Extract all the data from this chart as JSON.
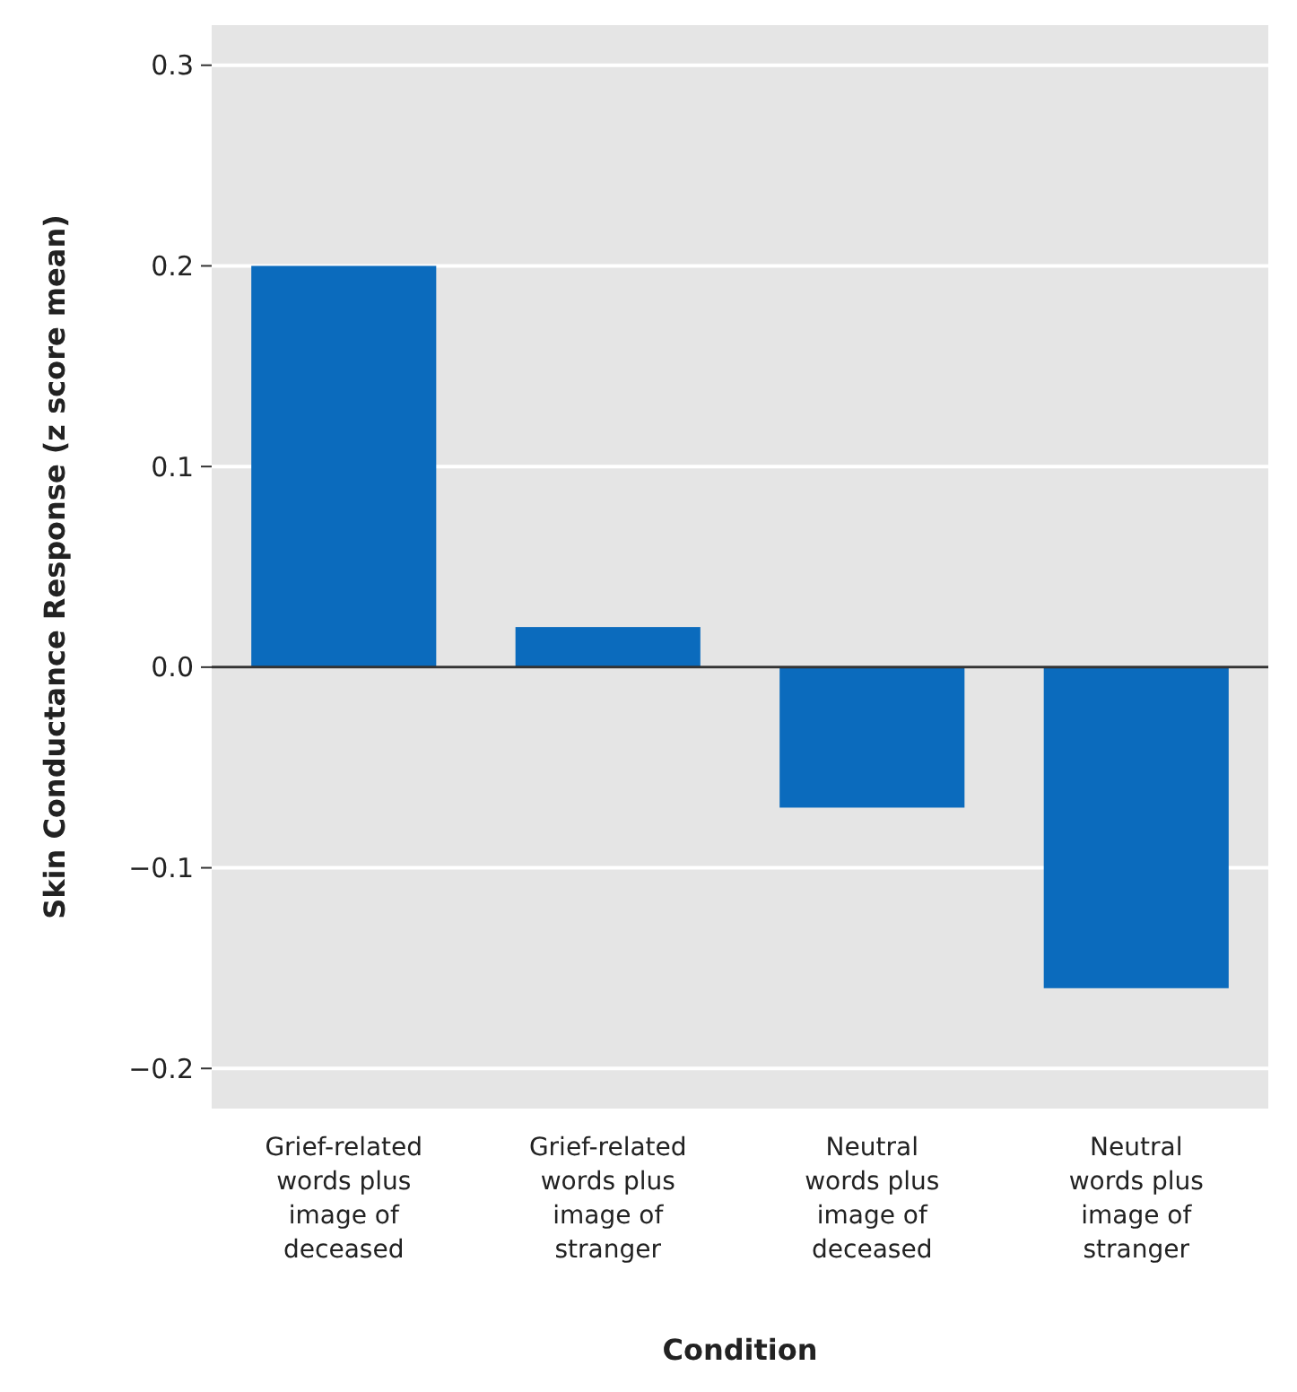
{
  "chart_data": {
    "type": "bar",
    "xlabel": "Condition",
    "ylabel": "Skin Conductance Response (z score mean)",
    "categories": [
      "Grief-related\nwords plus\nimage of\ndeceased",
      "Grief-related\nwords plus\nimage of\nstranger",
      "Neutral\nwords plus\nimage of\ndeceased",
      "Neutral\nwords plus\nimage of\nstranger"
    ],
    "values": [
      0.2,
      0.02,
      -0.07,
      -0.16
    ],
    "color": "#0b6bbd",
    "ylim": [
      -0.22,
      0.32
    ],
    "yticks": [
      {
        "value": -0.2,
        "label": "−0.2"
      },
      {
        "value": -0.1,
        "label": "−0.1"
      },
      {
        "value": 0,
        "label": "0.0"
      },
      {
        "value": 0.1,
        "label": "0.1"
      },
      {
        "value": 0.2,
        "label": "0.2"
      },
      {
        "value": 0.3,
        "label": "0.3"
      }
    ],
    "grid": "y",
    "ref_lines": [
      {
        "axis": "y",
        "value": 0,
        "color": "#333333"
      }
    ]
  }
}
